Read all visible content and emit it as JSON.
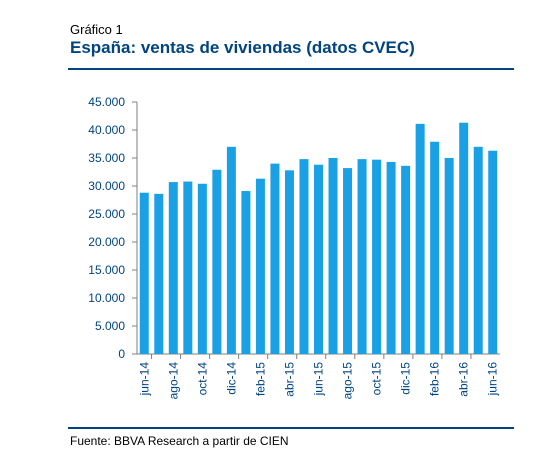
{
  "header": {
    "kicker": "Gráfico 1",
    "title": "España: ventas de viviendas (datos CVEC)"
  },
  "footer": {
    "source": "Fuente: BBVA Research a partir de CIEN"
  },
  "colors": {
    "bar": "#1aa1e5",
    "text": "#004481"
  },
  "chart_data": {
    "type": "bar",
    "ylim": [
      0,
      45000
    ],
    "yticks": [
      0,
      5000,
      10000,
      15000,
      20000,
      25000,
      30000,
      35000,
      40000,
      45000
    ],
    "ytick_labels": [
      "0",
      "5.000",
      "10.000",
      "15.000",
      "20.000",
      "25.000",
      "30.000",
      "35.000",
      "40.000",
      "45.000"
    ],
    "categories": [
      "jun-14",
      "jul-14",
      "ago-14",
      "sep-14",
      "oct-14",
      "nov-14",
      "dic-14",
      "ene-15",
      "feb-15",
      "mar-15",
      "abr-15",
      "may-15",
      "jun-15",
      "jul-15",
      "ago-15",
      "sep-15",
      "oct-15",
      "nov-15",
      "dic-15",
      "ene-16",
      "feb-16",
      "mar-16",
      "abr-16",
      "may-16",
      "jun-16"
    ],
    "xtick_labels": [
      "jun-14",
      "ago-14",
      "oct-14",
      "dic-14",
      "feb-15",
      "abr-15",
      "jun-15",
      "ago-15",
      "oct-15",
      "dic-15",
      "feb-16",
      "abr-16",
      "jun-16"
    ],
    "values": [
      28800,
      28600,
      30700,
      30800,
      30400,
      32900,
      37000,
      29100,
      31300,
      34000,
      32800,
      34800,
      33800,
      35000,
      33200,
      34800,
      34700,
      34300,
      33600,
      41100,
      37900,
      35000,
      41300,
      37000,
      36300
    ],
    "grid": false,
    "legend": false
  }
}
